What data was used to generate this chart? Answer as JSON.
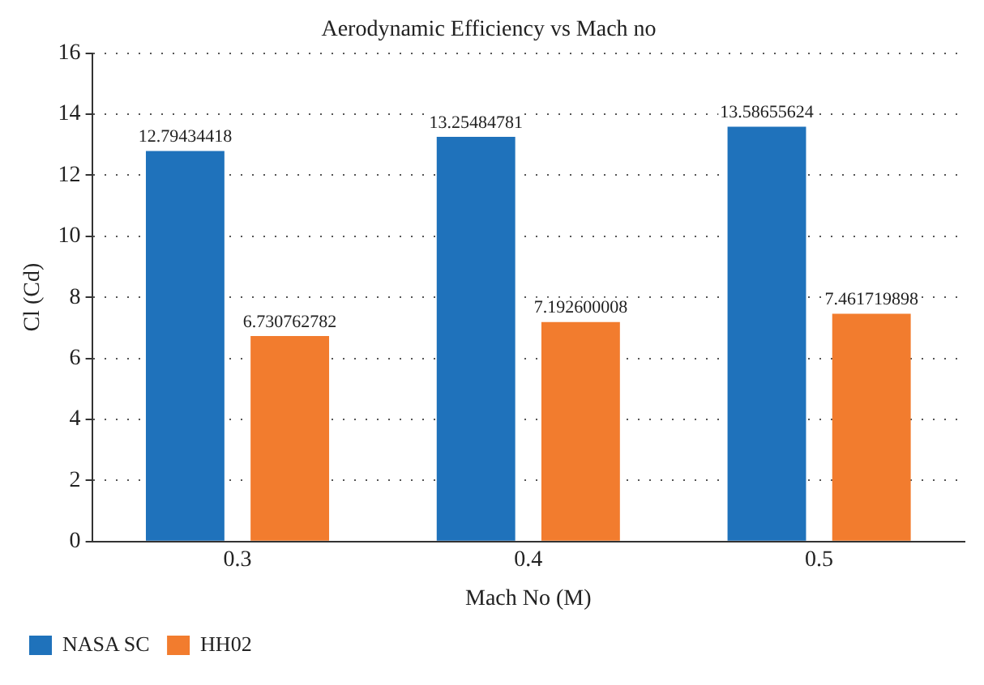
{
  "chart_data": {
    "type": "bar",
    "title": "Aerodynamic Efficiency vs Mach no",
    "xlabel": "Mach No (M)",
    "ylabel": "Cl (Cd)",
    "categories": [
      "0.3",
      "0.4",
      "0.5"
    ],
    "series": [
      {
        "name": "NASA SC",
        "color": "#1f72bb",
        "values": [
          12.79434418,
          13.25484781,
          13.58655624
        ]
      },
      {
        "name": "HH02",
        "color": "#f27c2e",
        "values": [
          6.730762782,
          7.192600008,
          7.461719898
        ]
      }
    ],
    "ylim": [
      0,
      16
    ],
    "yticks": [
      0,
      2,
      4,
      6,
      8,
      10,
      12,
      14,
      16
    ],
    "grid": "y",
    "legend": "bottom left",
    "data_labels": true
  }
}
